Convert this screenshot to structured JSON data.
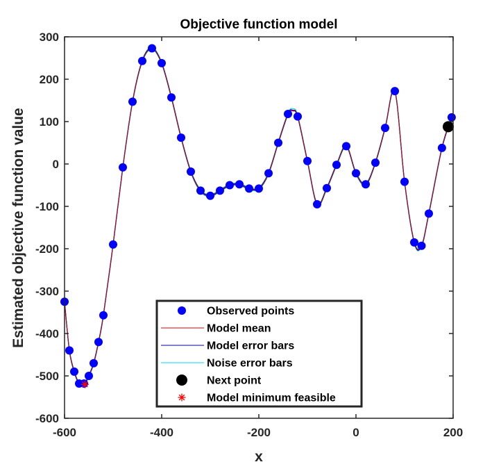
{
  "chart_data": {
    "type": "scatter",
    "title": "Objective function model",
    "xlabel": "x",
    "ylabel": "Estimated objective function value",
    "xlim": [
      -600,
      200
    ],
    "ylim": [
      -600,
      300
    ],
    "xticks": [
      -600,
      -400,
      -200,
      0,
      200
    ],
    "yticks": [
      -600,
      -500,
      -400,
      -300,
      -200,
      -100,
      0,
      100,
      200,
      300
    ],
    "grid": false,
    "legend_position": "bottom-center",
    "series": [
      {
        "name": "Observed points",
        "style": "marker",
        "color": "#0000ff",
        "x": [
          -600,
          -590,
          -580,
          -570,
          -560,
          -550,
          -540,
          -530,
          -520,
          -500,
          -480,
          -460,
          -440,
          -420,
          -400,
          -380,
          -360,
          -340,
          -320,
          -300,
          -280,
          -260,
          -240,
          -220,
          -200,
          -180,
          -160,
          -140,
          -120,
          -100,
          -80,
          -60,
          -40,
          -20,
          0,
          20,
          40,
          60,
          80,
          100,
          120,
          135,
          150,
          177,
          197
        ],
        "y": [
          -325,
          -440,
          -490,
          -518,
          -518,
          -500,
          -470,
          -420,
          -357,
          -190,
          -8,
          147,
          243,
          273,
          238,
          157,
          62,
          -18,
          -63,
          -75,
          -63,
          -50,
          -48,
          -58,
          -58,
          -22,
          50,
          118,
          112,
          7,
          -95,
          -57,
          -2,
          42,
          -22,
          -48,
          3,
          85,
          172,
          -42,
          -185,
          -193,
          -117,
          38,
          110
        ]
      },
      {
        "name": "Model mean",
        "style": "line",
        "color": "#d40000",
        "x": [
          -600,
          -590,
          -580,
          -570,
          -560,
          -550,
          -540,
          -530,
          -520,
          -500,
          -480,
          -460,
          -440,
          -420,
          -400,
          -380,
          -360,
          -340,
          -320,
          -300,
          -280,
          -260,
          -240,
          -220,
          -200,
          -180,
          -160,
          -140,
          -130,
          -120,
          -100,
          -80,
          -60,
          -40,
          -20,
          0,
          20,
          40,
          60,
          80,
          100,
          120,
          135,
          150,
          177,
          197
        ],
        "y": [
          -325,
          -440,
          -490,
          -518,
          -520,
          -500,
          -470,
          -420,
          -357,
          -190,
          -8,
          147,
          243,
          273,
          238,
          157,
          62,
          -18,
          -63,
          -75,
          -63,
          -50,
          -48,
          -58,
          -58,
          -22,
          50,
          118,
          126,
          112,
          7,
          -95,
          -57,
          -2,
          42,
          -22,
          -48,
          3,
          85,
          172,
          -42,
          -185,
          -193,
          -117,
          38,
          110
        ]
      },
      {
        "name": "Model error bars",
        "style": "line",
        "color": "#0000a0",
        "x": [
          -600,
          -590,
          -580,
          -570,
          -560,
          -550,
          -540,
          -530,
          -520,
          -500,
          -480,
          -460,
          -440,
          -420,
          -400,
          -380,
          -360,
          -340,
          -320,
          -300,
          -280,
          -260,
          -240,
          -220,
          -200,
          -180,
          -160,
          -140,
          -130,
          -120,
          -100,
          -80,
          -60,
          -40,
          -20,
          0,
          20,
          40,
          60,
          80,
          100,
          120,
          135,
          150,
          177,
          197
        ],
        "y": [
          -325,
          -440,
          -490,
          -518,
          -520,
          -500,
          -470,
          -420,
          -357,
          -190,
          -8,
          147,
          243,
          273,
          238,
          157,
          62,
          -18,
          -63,
          -75,
          -63,
          -50,
          -48,
          -58,
          -58,
          -22,
          50,
          118,
          126,
          112,
          7,
          -95,
          -57,
          -2,
          42,
          -22,
          -48,
          3,
          85,
          172,
          -42,
          -185,
          -193,
          -117,
          38,
          110
        ]
      },
      {
        "name": "Noise error bars",
        "style": "line",
        "color": "#00d8f0",
        "x": [
          -600,
          -590,
          -580,
          -570,
          -560,
          -550,
          -540,
          -530,
          -520,
          -500,
          -480,
          -460,
          -440,
          -420,
          -400,
          -380,
          -360,
          -340,
          -320,
          -300,
          -280,
          -260,
          -240,
          -220,
          -200,
          -180,
          -160,
          -140,
          -130,
          -120,
          -100,
          -80,
          -60,
          -40,
          -20,
          0,
          20,
          40,
          60,
          80,
          100,
          120,
          135,
          150,
          177,
          197
        ],
        "y": [
          -325,
          -440,
          -490,
          -518,
          -520,
          -500,
          -470,
          -420,
          -357,
          -190,
          -8,
          147,
          243,
          273,
          238,
          157,
          62,
          -18,
          -63,
          -75,
          -63,
          -50,
          -48,
          -58,
          -58,
          -22,
          50,
          118,
          128,
          112,
          7,
          -95,
          -57,
          -2,
          42,
          -22,
          -48,
          3,
          85,
          172,
          -42,
          -185,
          -193,
          -117,
          38,
          110
        ]
      },
      {
        "name": "Next point",
        "style": "marker",
        "color": "#000000",
        "x": [
          190
        ],
        "y": [
          88
        ]
      },
      {
        "name": "Model minimum feasible",
        "style": "asterisk",
        "color": "#ff0000",
        "x": [
          -558
        ],
        "y": [
          -520
        ]
      }
    ]
  }
}
